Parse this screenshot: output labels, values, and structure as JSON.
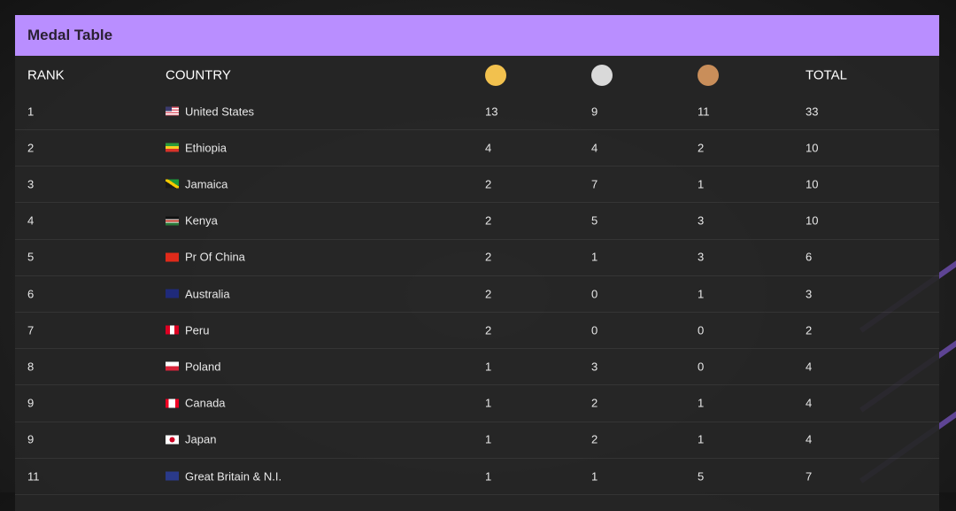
{
  "title": "Medal Table",
  "headers": {
    "rank": "RANK",
    "country": "COUNTRY",
    "total": "TOTAL"
  },
  "medal_colors": {
    "gold": "#f2c14e",
    "silver": "#d9d9d9",
    "bronze": "#c98e5a"
  },
  "accent": "#b98eff",
  "rows": [
    {
      "rank": "1",
      "country": "United States",
      "flag": "us",
      "gold": "13",
      "silver": "9",
      "bronze": "11",
      "total": "33"
    },
    {
      "rank": "2",
      "country": "Ethiopia",
      "flag": "et",
      "gold": "4",
      "silver": "4",
      "bronze": "2",
      "total": "10"
    },
    {
      "rank": "3",
      "country": "Jamaica",
      "flag": "jm",
      "gold": "2",
      "silver": "7",
      "bronze": "1",
      "total": "10"
    },
    {
      "rank": "4",
      "country": "Kenya",
      "flag": "ke",
      "gold": "2",
      "silver": "5",
      "bronze": "3",
      "total": "10"
    },
    {
      "rank": "5",
      "country": "Pr Of China",
      "flag": "cn",
      "gold": "2",
      "silver": "1",
      "bronze": "3",
      "total": "6"
    },
    {
      "rank": "6",
      "country": "Australia",
      "flag": "au",
      "gold": "2",
      "silver": "0",
      "bronze": "1",
      "total": "3"
    },
    {
      "rank": "7",
      "country": "Peru",
      "flag": "pe",
      "gold": "2",
      "silver": "0",
      "bronze": "0",
      "total": "2"
    },
    {
      "rank": "8",
      "country": "Poland",
      "flag": "pl",
      "gold": "1",
      "silver": "3",
      "bronze": "0",
      "total": "4"
    },
    {
      "rank": "9",
      "country": "Canada",
      "flag": "ca",
      "gold": "1",
      "silver": "2",
      "bronze": "1",
      "total": "4"
    },
    {
      "rank": "9",
      "country": "Japan",
      "flag": "jp",
      "gold": "1",
      "silver": "2",
      "bronze": "1",
      "total": "4"
    },
    {
      "rank": "11",
      "country": "Great Britain & N.I.",
      "flag": "gb",
      "gold": "1",
      "silver": "1",
      "bronze": "5",
      "total": "7"
    }
  ]
}
